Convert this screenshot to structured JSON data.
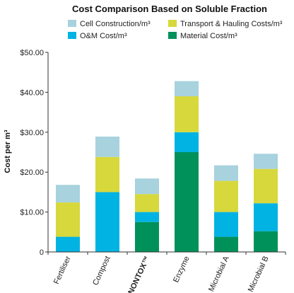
{
  "chart_data": {
    "type": "bar",
    "stacked": true,
    "title": "Cost Comparison Based on Soluble Fraction",
    "xlabel": "",
    "ylabel": "Cost per m³",
    "ylim": [
      0,
      50
    ],
    "yticks": [
      0,
      10,
      20,
      30,
      40,
      50
    ],
    "ytick_labels": [
      "0",
      "$10.00",
      "$20.00",
      "$30.00",
      "$40.00",
      "$50.00"
    ],
    "grid": false,
    "legend_position": "top",
    "categories": [
      "Fertiliser",
      "Compost",
      "NONTOX™",
      "Enzyme",
      "Microbial A",
      "Microbial B"
    ],
    "highlight_category": "NONTOX™",
    "series": [
      {
        "name": "Material Cost/m³",
        "color": "#00915a",
        "values": [
          0,
          0,
          7.5,
          25,
          3.8,
          5.2
        ]
      },
      {
        "name": "O&M Cost/m³",
        "color": "#00b3e3",
        "values": [
          3.8,
          15,
          2.5,
          5,
          6.2,
          7
        ]
      },
      {
        "name": "Transport & Hauling Costs/m³",
        "color": "#d7d83b",
        "values": [
          8.6,
          8.8,
          4.5,
          9,
          7.8,
          8.6
        ]
      },
      {
        "name": "Cell Construction/m³",
        "color": "#a7d2de",
        "values": [
          4.4,
          5.1,
          3.9,
          3.8,
          3.9,
          3.8
        ]
      }
    ],
    "legend_order": [
      "Cell Construction/m³",
      "Transport & Hauling Costs/m³",
      "O&M Cost/m³",
      "Material Cost/m³"
    ]
  }
}
